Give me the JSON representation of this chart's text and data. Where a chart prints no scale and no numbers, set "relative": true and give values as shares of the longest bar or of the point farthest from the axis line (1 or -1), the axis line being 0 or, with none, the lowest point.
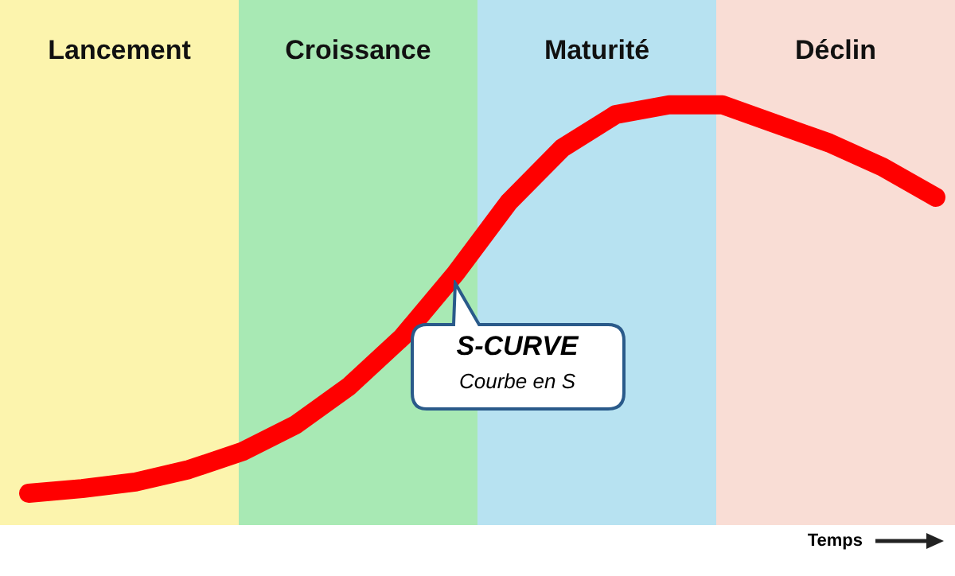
{
  "chart_data": {
    "type": "line",
    "relative": true,
    "xlabel": "Temps",
    "tick_labels": false,
    "marker": "none",
    "line_style": "solid",
    "categories": [
      null,
      null,
      null,
      null,
      null,
      null,
      null,
      null,
      null,
      null,
      null,
      null,
      null,
      null,
      null,
      null,
      null,
      null
    ],
    "series": [
      {
        "color": "#ff0000",
        "values": [
          0,
          0.012,
          0.029,
          0.061,
          0.107,
          0.176,
          0.275,
          0.402,
          0.566,
          0.75,
          0.889,
          0.975,
          1,
          1,
          0.951,
          0.902,
          0.84,
          0.762
        ]
      }
    ],
    "annotations": [
      "Lancement",
      "Croissance",
      "Maturité",
      "Déclin",
      "S-CURVE",
      "Courbe en S"
    ]
  }
}
